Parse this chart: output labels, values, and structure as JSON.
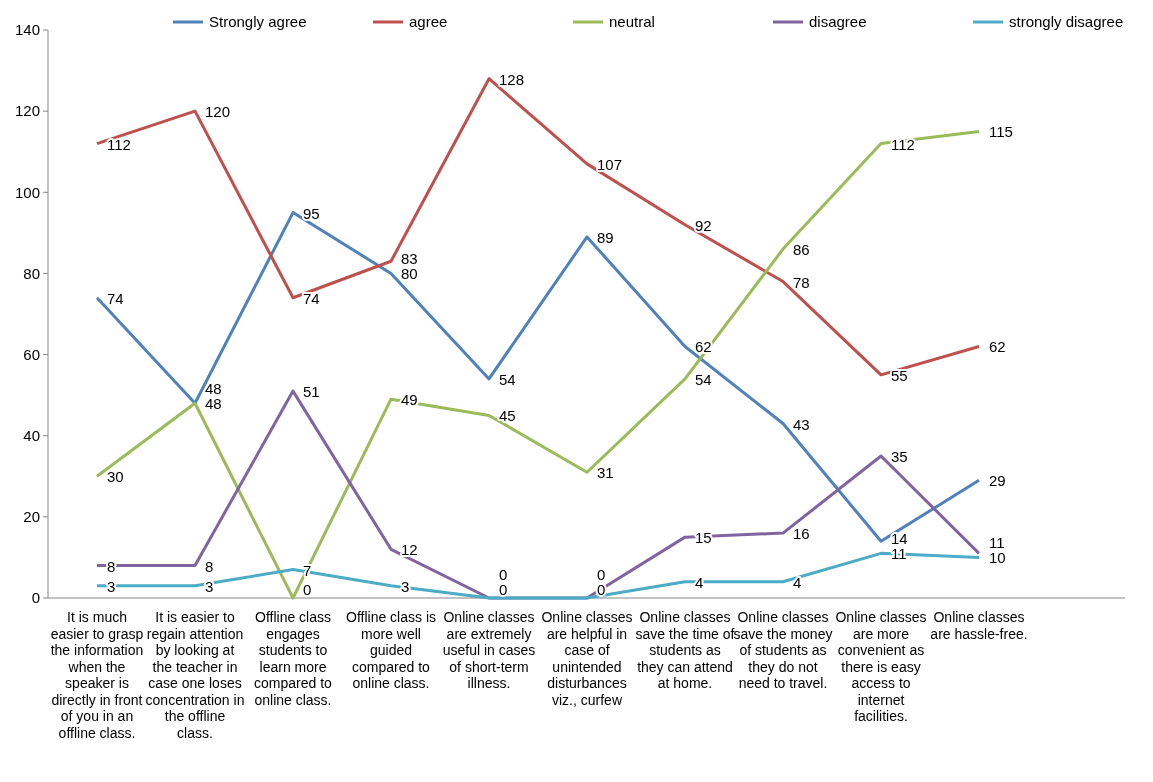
{
  "chart_data": {
    "type": "line",
    "categories": [
      "It is much easier to grasp the information when the speaker is directly in front of you in an offline class.",
      "It is easier to regain attention by looking at the teacher in case one loses concentration in the offline class.",
      "Offline class engages students to learn more compared to online class.",
      "Offline class is more well guided compared to online class.",
      "Online classes are extremely useful in cases of short-term illness.",
      "Online classes are helpful in case of unintended disturbances viz., curfew",
      "Online classes save the time of students as they can attend at home.",
      "Online classes save the money of students as they do not need to travel.",
      "Online classes are more convenient as there is easy access to internet facilities.",
      "Online classes are hassle-free."
    ],
    "series": [
      {
        "name": "Strongly agree",
        "color": "#4f81bd",
        "values": [
          74,
          48,
          95,
          80,
          54,
          89,
          62,
          43,
          14,
          29
        ]
      },
      {
        "name": "agree",
        "color": "#c0504d",
        "values": [
          112,
          120,
          74,
          83,
          128,
          107,
          92,
          78,
          55,
          62
        ]
      },
      {
        "name": "neutral",
        "color": "#9bbb59",
        "values": [
          30,
          48,
          0,
          49,
          45,
          31,
          54,
          86,
          112,
          115
        ]
      },
      {
        "name": "disagree",
        "color": "#8064a2",
        "values": [
          8,
          8,
          51,
          12,
          0,
          0,
          15,
          16,
          35,
          11
        ]
      },
      {
        "name": "strongly disagree",
        "color": "#4bacc6",
        "values": [
          3,
          3,
          7,
          3,
          0,
          0,
          4,
          4,
          11,
          10
        ]
      }
    ],
    "ylim": [
      0,
      140
    ],
    "yticks": [
      0,
      20,
      40,
      60,
      80,
      100,
      120,
      140
    ],
    "grid": false,
    "legend": "top",
    "marker": "none",
    "line_style": "solid",
    "data_labels": true
  }
}
